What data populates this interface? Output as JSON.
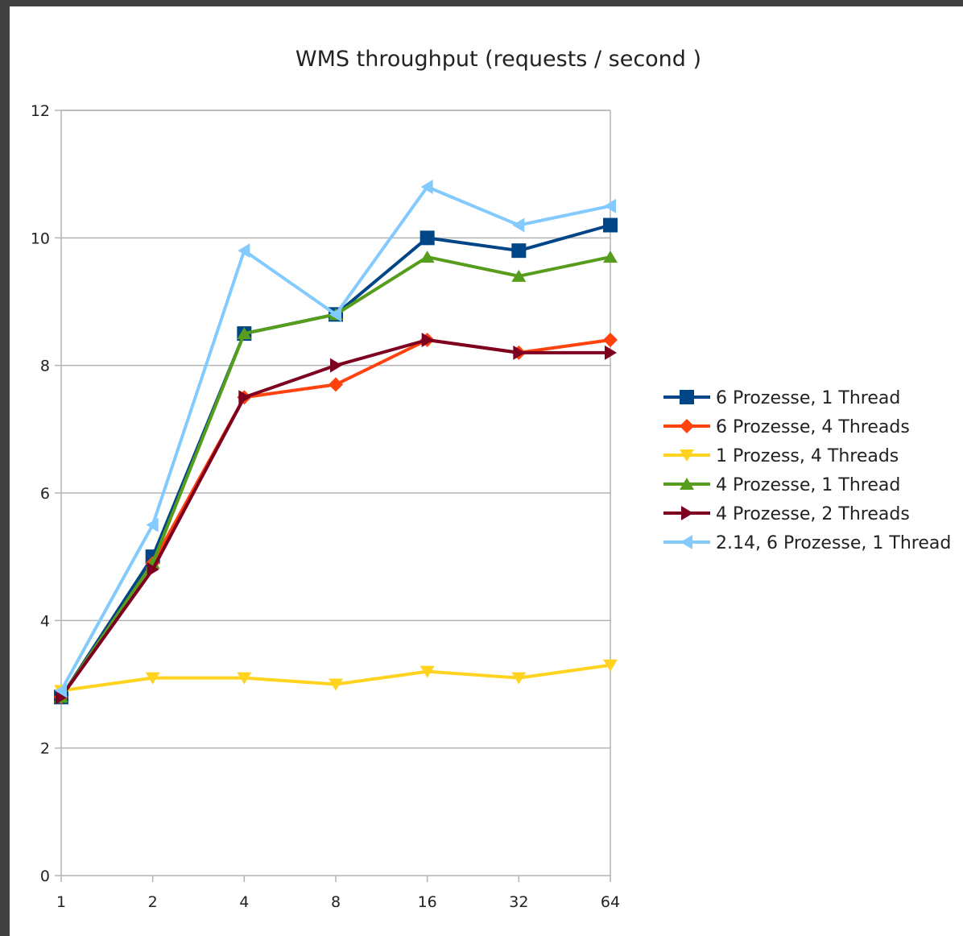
{
  "chart_data": {
    "type": "line",
    "title": "WMS throughput (requests / second )",
    "xlabel": "",
    "ylabel": "",
    "x_scale": "log2",
    "categories": [
      "1",
      "2",
      "4",
      "8",
      "16",
      "32",
      "64"
    ],
    "x": [
      1,
      2,
      4,
      8,
      16,
      32,
      64
    ],
    "ylim": [
      0,
      12
    ],
    "yticks": [
      0,
      2,
      4,
      6,
      8,
      10,
      12
    ],
    "grid": true,
    "legend_position": "right",
    "series": [
      {
        "name": "6 Prozesse, 1 Thread",
        "color": "#004586",
        "marker": "square",
        "values": [
          2.8,
          5.0,
          8.5,
          8.8,
          10.0,
          9.8,
          10.2
        ]
      },
      {
        "name": "6 Prozesse, 4 Threads",
        "color": "#ff420e",
        "marker": "diamond",
        "values": [
          2.8,
          4.9,
          7.5,
          7.7,
          8.4,
          8.2,
          8.4
        ]
      },
      {
        "name": "1 Prozess, 4 Threads",
        "color": "#ffd320",
        "marker": "triangle-down",
        "values": [
          2.9,
          3.1,
          3.1,
          3.0,
          3.2,
          3.1,
          3.3
        ]
      },
      {
        "name": "4 Prozesse, 1 Thread",
        "color": "#579d1c",
        "marker": "triangle-up",
        "values": [
          2.8,
          4.9,
          8.5,
          8.8,
          9.7,
          9.4,
          9.7
        ]
      },
      {
        "name": "4 Prozesse, 2 Threads",
        "color": "#7e0021",
        "marker": "triangle-right",
        "values": [
          2.8,
          4.8,
          7.5,
          8.0,
          8.4,
          8.2,
          8.2
        ]
      },
      {
        "name": "2.14, 6 Prozesse, 1 Thread",
        "color": "#83caff",
        "marker": "triangle-left",
        "values": [
          2.9,
          5.5,
          9.8,
          8.8,
          10.8,
          10.2,
          10.5
        ]
      }
    ]
  }
}
